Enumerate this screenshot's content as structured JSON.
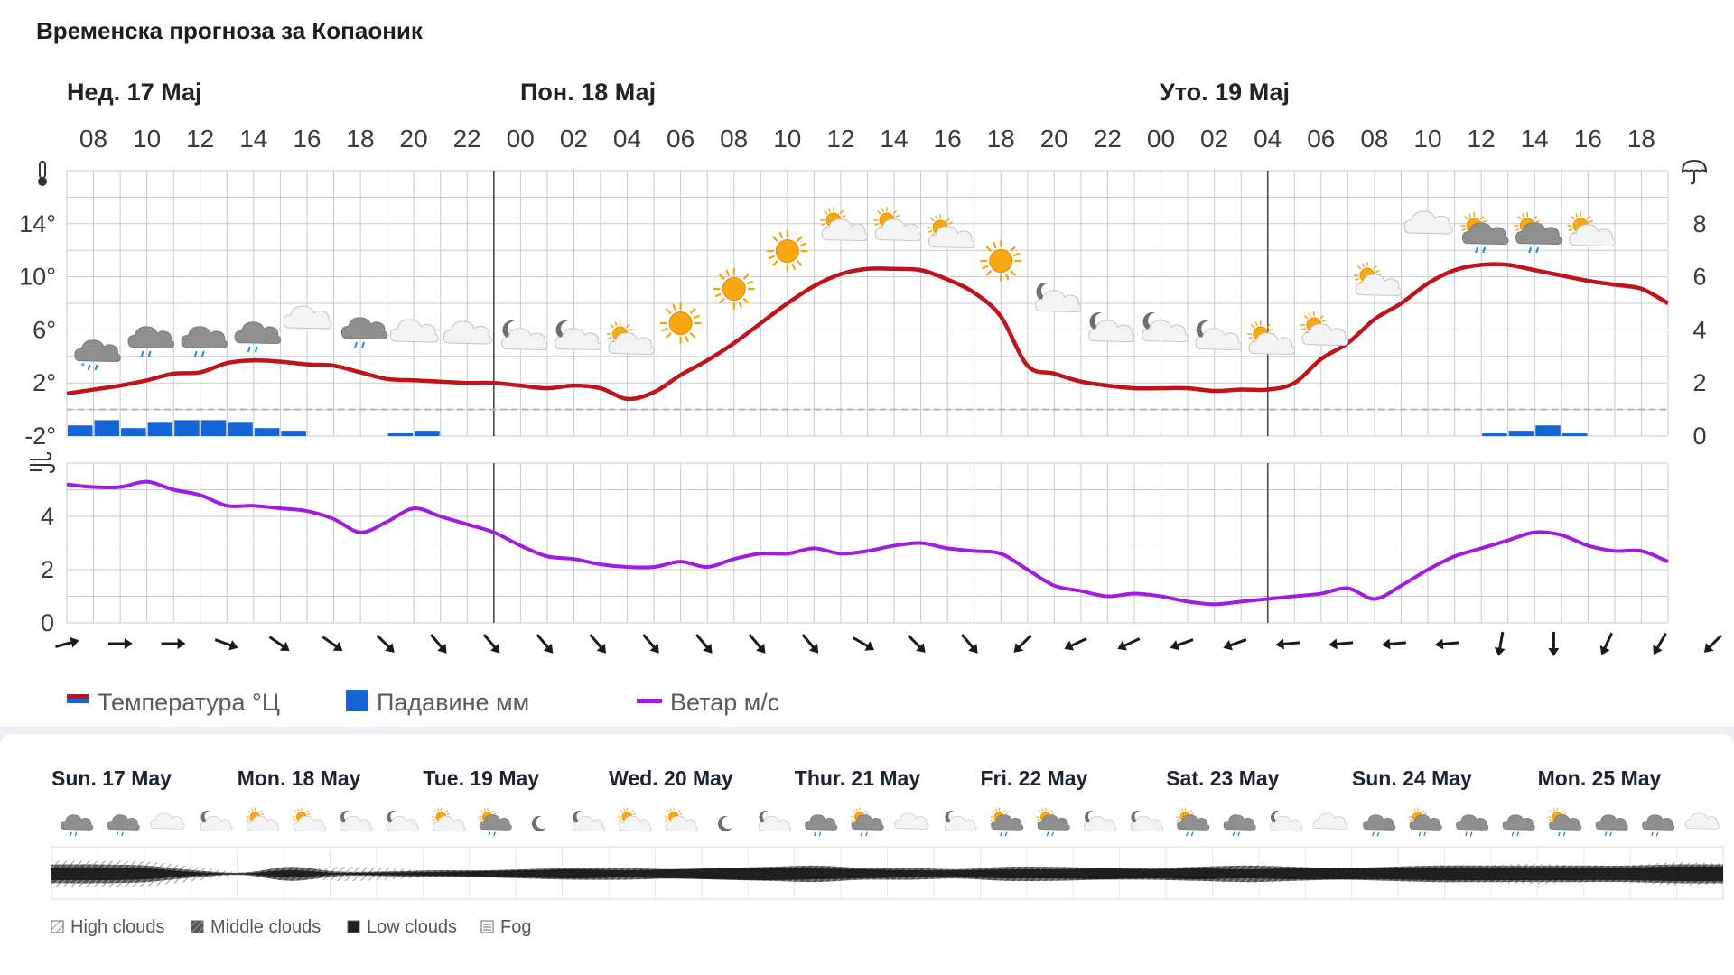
{
  "title": "Временска прогноза за Копаоник",
  "day_labels": [
    "Нед. 17 Мај",
    "Пон. 18 Мај",
    "Уто. 19 Мај"
  ],
  "hours": [
    "08",
    "10",
    "12",
    "14",
    "16",
    "18",
    "20",
    "22",
    "00",
    "02",
    "04",
    "06",
    "08",
    "10",
    "12",
    "14",
    "16",
    "18",
    "20",
    "22",
    "00",
    "02",
    "04",
    "06",
    "08",
    "10",
    "12",
    "14",
    "16",
    "18"
  ],
  "icons": {
    "thermometer": "thermometer-icon",
    "umbrella": "umbrella-icon",
    "wind": "wind-icon"
  },
  "colors": {
    "temperature": "#c0141a",
    "precipitation": "#1565d8",
    "wind": "#a21ce0",
    "grid": "#c5cad3",
    "freezing_line": "#b0b4ba"
  },
  "legend": {
    "temperature": "Температура °Ц",
    "precipitation": "Падавине мм",
    "wind": "Ветар м/с"
  },
  "chart_data": [
    {
      "type": "line",
      "title": "Температура °Ц / Падавине мм",
      "x": [
        "08",
        "09",
        "10",
        "11",
        "12",
        "13",
        "14",
        "15",
        "16",
        "17",
        "18",
        "19",
        "20",
        "21",
        "22",
        "23",
        "00",
        "01",
        "02",
        "03",
        "04",
        "05",
        "06",
        "07",
        "08",
        "09",
        "10",
        "11",
        "12",
        "13",
        "14",
        "15",
        "16",
        "17",
        "18",
        "19",
        "20",
        "21",
        "22",
        "23",
        "00",
        "01",
        "02",
        "03",
        "04",
        "05",
        "06",
        "07",
        "08",
        "09",
        "10",
        "11",
        "12",
        "13",
        "14",
        "15",
        "16",
        "17",
        "18",
        "19",
        "20"
      ],
      "temperature_c": [
        1.2,
        1.5,
        1.8,
        2.2,
        2.7,
        2.8,
        3.5,
        3.7,
        3.6,
        3.4,
        3.3,
        2.8,
        2.3,
        2.2,
        2.1,
        2.0,
        2.0,
        1.8,
        1.6,
        1.8,
        1.6,
        0.8,
        1.3,
        2.6,
        3.7,
        5.0,
        6.5,
        8.0,
        9.3,
        10.2,
        10.6,
        10.6,
        10.5,
        9.8,
        8.8,
        7.0,
        3.3,
        2.7,
        2.1,
        1.8,
        1.6,
        1.6,
        1.6,
        1.4,
        1.5,
        1.5,
        2.0,
        3.8,
        5.0,
        6.8,
        8.0,
        9.5,
        10.5,
        10.9,
        10.9,
        10.5,
        10.1,
        9.7,
        9.4,
        9.1,
        8.0
      ],
      "precipitation_mm": [
        0.4,
        0.6,
        0.3,
        0.5,
        0.6,
        0.6,
        0.5,
        0.3,
        0.2,
        0,
        0,
        0,
        0.1,
        0.2,
        0,
        0,
        0,
        0,
        0,
        0,
        0,
        0,
        0,
        0,
        0,
        0,
        0,
        0,
        0,
        0,
        0,
        0,
        0,
        0,
        0,
        0,
        0,
        0,
        0,
        0,
        0,
        0,
        0,
        0,
        0,
        0,
        0,
        0,
        0,
        0,
        0,
        0,
        0,
        0.1,
        0.2,
        0.4,
        0.1,
        0,
        0,
        0,
        0
      ],
      "series": [
        {
          "name": "Температура °Ц",
          "key": "temperature_c",
          "axis": "left"
        },
        {
          "name": "Падавине мм",
          "key": "precipitation_mm",
          "axis": "right"
        }
      ],
      "y_left_ticks": [
        "14°",
        "10°",
        "6°",
        "2°",
        "-2°"
      ],
      "y_right_ticks": [
        "8",
        "6",
        "4",
        "2",
        "0"
      ],
      "ylim_left": [
        -2,
        18
      ],
      "ylim_right": [
        0,
        10
      ],
      "grid": true,
      "freezing_line_c": 0,
      "weather_icons": [
        "cloud-rain-snow-icon",
        "cloud-rain-icon",
        "cloud-rain-icon",
        "cloud-rain-icon",
        "cloud-icon",
        "cloud-rain-icon",
        "cloud-icon",
        "cloud-icon",
        "moon-cloud-icon",
        "moon-cloud-icon",
        "sun-cloud-icon",
        "sun-icon",
        "sun-icon",
        "sun-icon",
        "sun-cloud-icon",
        "sun-cloud-icon",
        "sun-cloud-icon",
        "sun-icon",
        "moon-cloud-icon",
        "moon-cloud-icon",
        "moon-cloud-icon",
        "moon-cloud-icon",
        "sun-cloud-icon",
        "sun-cloud-icon",
        "sun-cloud-icon",
        "cloud-icon",
        "sun-cloud-rain-icon",
        "sun-cloud-rain-icon",
        "sun-cloud-icon"
      ]
    },
    {
      "type": "line",
      "title": "Ветар м/с",
      "x": [
        "08",
        "09",
        "10",
        "11",
        "12",
        "13",
        "14",
        "15",
        "16",
        "17",
        "18",
        "19",
        "20",
        "21",
        "22",
        "23",
        "00",
        "01",
        "02",
        "03",
        "04",
        "05",
        "06",
        "07",
        "08",
        "09",
        "10",
        "11",
        "12",
        "13",
        "14",
        "15",
        "16",
        "17",
        "18",
        "19",
        "20",
        "21",
        "22",
        "23",
        "00",
        "01",
        "02",
        "03",
        "04",
        "05",
        "06",
        "07",
        "08",
        "09",
        "10",
        "11",
        "12",
        "13",
        "14",
        "15",
        "16",
        "17",
        "18",
        "19",
        "20"
      ],
      "wind_ms": [
        5.2,
        5.1,
        5.1,
        5.3,
        5.0,
        4.8,
        4.4,
        4.4,
        4.3,
        4.2,
        3.9,
        3.4,
        3.8,
        4.3,
        4.0,
        3.7,
        3.4,
        2.9,
        2.5,
        2.4,
        2.2,
        2.1,
        2.1,
        2.3,
        2.1,
        2.4,
        2.6,
        2.6,
        2.8,
        2.6,
        2.7,
        2.9,
        3.0,
        2.8,
        2.7,
        2.6,
        2.0,
        1.4,
        1.2,
        1.0,
        1.1,
        1.0,
        0.8,
        0.7,
        0.8,
        0.9,
        1.0,
        1.1,
        1.3,
        0.9,
        1.4,
        2.0,
        2.5,
        2.8,
        3.1,
        3.4,
        3.3,
        2.9,
        2.7,
        2.7,
        2.3
      ],
      "y_ticks": [
        "4",
        "2",
        "0"
      ],
      "ylim": [
        0,
        6
      ],
      "grid": true,
      "wind_directions_deg": [
        75,
        90,
        90,
        110,
        125,
        125,
        135,
        140,
        140,
        140,
        140,
        140,
        140,
        140,
        140,
        120,
        135,
        140,
        225,
        245,
        245,
        250,
        250,
        265,
        265,
        265,
        265,
        190,
        180,
        205,
        210,
        225,
        190,
        190
      ]
    }
  ],
  "bottom": {
    "days": [
      "Sun. 17 May",
      "Mon. 18 May",
      "Tue. 19 May",
      "Wed. 20 May",
      "Thur. 21 May",
      "Fri. 22 May",
      "Sat. 23 May",
      "Sun. 24 May",
      "Mon. 25 May"
    ],
    "icons": [
      "cloud-rain-icon",
      "cloud-rain-icon",
      "cloud-icon",
      "moon-cloud-icon",
      "sun-cloud-icon",
      "sun-cloud-icon",
      "moon-cloud-icon",
      "moon-cloud-icon",
      "sun-cloud-icon",
      "sun-cloud-rain-icon",
      "moon-icon",
      "moon-cloud-icon",
      "sun-cloud-icon",
      "sun-cloud-icon",
      "moon-icon",
      "moon-cloud-icon",
      "cloud-rain-icon",
      "sun-cloud-rain-icon",
      "cloud-icon",
      "moon-cloud-icon",
      "sun-cloud-rain-icon",
      "sun-cloud-rain-icon",
      "moon-cloud-icon",
      "moon-cloud-icon",
      "sun-cloud-rain-icon",
      "cloud-rain-icon",
      "moon-cloud-icon",
      "cloud-icon",
      "cloud-rain-icon",
      "sun-cloud-rain-icon",
      "cloud-rain-icon",
      "cloud-rain-icon",
      "sun-cloud-rain-icon",
      "cloud-rain-icon",
      "cloud-rain-icon",
      "cloud-icon"
    ],
    "cloud_legend": [
      "High clouds",
      "Middle clouds",
      "Low clouds",
      "Fog"
    ],
    "cloud_cover": {
      "high": [
        0.9,
        0.9,
        0.85,
        0.5,
        0.1,
        0.2,
        0.5,
        0.4,
        0.2,
        0.1,
        0.1,
        0.2,
        0.3,
        0.2,
        0.2,
        0.4,
        0.5,
        0.3,
        0.3,
        0.2,
        0.5,
        0.4,
        0.3,
        0.3,
        0.3,
        0.6,
        0.5,
        0.3,
        0.5,
        0.6,
        0.6,
        0.7,
        0.6,
        0.6,
        0.8,
        0.7
      ],
      "middle": [
        0.8,
        0.8,
        0.7,
        0.3,
        0.1,
        0.6,
        0.2,
        0.2,
        0.3,
        0.3,
        0.4,
        0.5,
        0.5,
        0.4,
        0.5,
        0.6,
        0.7,
        0.5,
        0.5,
        0.4,
        0.6,
        0.6,
        0.5,
        0.5,
        0.6,
        0.7,
        0.6,
        0.5,
        0.6,
        0.7,
        0.7,
        0.7,
        0.7,
        0.7,
        0.8,
        0.8
      ],
      "low": [
        0.7,
        0.7,
        0.6,
        0.2,
        0.05,
        0.4,
        0.1,
        0.15,
        0.2,
        0.3,
        0.4,
        0.5,
        0.4,
        0.5,
        0.6,
        0.7,
        0.6,
        0.5,
        0.4,
        0.4,
        0.5,
        0.5,
        0.6,
        0.5,
        0.6,
        0.5,
        0.6,
        0.6,
        0.6,
        0.7,
        0.7,
        0.7,
        0.7,
        0.7,
        0.8,
        0.8
      ]
    }
  }
}
